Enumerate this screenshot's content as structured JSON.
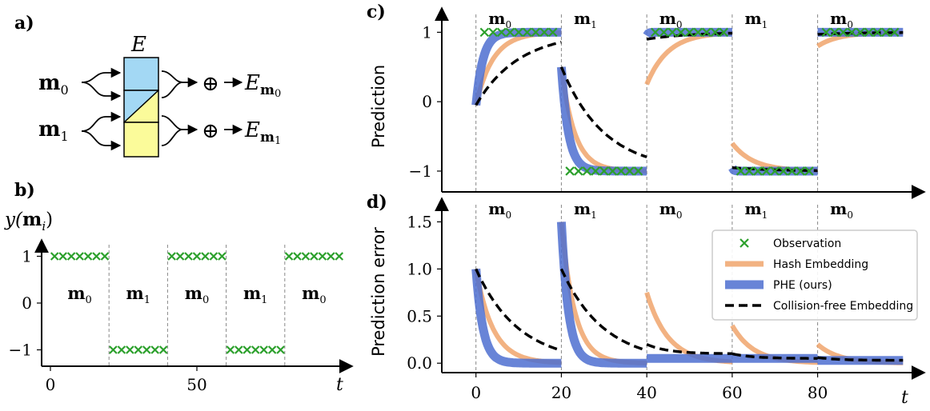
{
  "panel_labels": {
    "a": "a)",
    "b": "b)",
    "c": "c)",
    "d": "d)"
  },
  "diagram": {
    "table_label": "E",
    "inputs": [
      {
        "sym": "m",
        "sub": "0"
      },
      {
        "sym": "m",
        "sub": "1"
      }
    ],
    "plus": "⊕",
    "outputs": [
      {
        "sym": "E",
        "sub_sym": "m",
        "sub": "0"
      },
      {
        "sym": "E",
        "sub_sym": "m",
        "sub": "1"
      }
    ],
    "colors": {
      "blue": "#a3d8f4",
      "yellow": "#fbfb9a",
      "arrow": "#000000"
    }
  },
  "colors": {
    "observation": "#2ca02c",
    "hash": "#f0a46c",
    "phe": "#4e6fd0",
    "cf": "#000000",
    "segment_line": "#888888"
  },
  "chart_data": [
    {
      "id": "b",
      "type": "scatter",
      "ylabel": {
        "sym": "y",
        "arg": "m",
        "sub": "i"
      },
      "xlabel": "t",
      "xlim": [
        -3,
        103
      ],
      "ylim": [
        -1.35,
        1.35
      ],
      "xticks": [
        "0",
        "50"
      ],
      "yticks": [
        "1",
        "0",
        "−1"
      ],
      "segments": [
        {
          "label": "m",
          "sub": "0",
          "start": 0,
          "end": 20,
          "y": 1
        },
        {
          "label": "m",
          "sub": "1",
          "start": 20,
          "end": 40,
          "y": -1
        },
        {
          "label": "m",
          "sub": "0",
          "start": 40,
          "end": 60,
          "y": 1
        },
        {
          "label": "m",
          "sub": "1",
          "start": 60,
          "end": 80,
          "y": -1
        },
        {
          "label": "m",
          "sub": "0",
          "start": 80,
          "end": 100,
          "y": 1
        }
      ],
      "observations_per_segment": 7
    },
    {
      "id": "c",
      "type": "line",
      "ylabel": "Prediction",
      "xlim": [
        -8,
        105
      ],
      "ylim": [
        -1.3,
        1.35
      ],
      "yticks": [
        "1",
        "0",
        "−1"
      ],
      "segment_labels": [
        {
          "label": "m",
          "sub": "0"
        },
        {
          "label": "m",
          "sub": "1"
        },
        {
          "label": "m",
          "sub": "0"
        },
        {
          "label": "m",
          "sub": "1"
        },
        {
          "label": "m",
          "sub": "0"
        }
      ],
      "segment_bounds": [
        0,
        20,
        40,
        60,
        80,
        100
      ],
      "series": [
        {
          "name": "Hash Embedding",
          "role": "hash",
          "segments": [
            [
              0,
              1,
              0.25
            ],
            [
              20,
              -1,
              0.32
            ],
            [
              40,
              0.25,
              0.2
            ],
            [
              60,
              -0.6,
              0.2
            ],
            [
              80,
              0.8,
              0.2
            ]
          ]
        },
        {
          "name": "PHE (ours)",
          "role": "phe",
          "segments": [
            [
              0,
              1,
              0.6
            ],
            [
              20,
              -1,
              0.6
            ],
            [
              40,
              0.95,
              3
            ],
            [
              60,
              -0.95,
              3
            ],
            [
              80,
              1.0,
              3
            ]
          ]
        },
        {
          "name": "Collision-free Embedding",
          "role": "cf",
          "segments": [
            [
              0,
              1,
              0.1
            ],
            [
              20,
              -1,
              0.1
            ],
            [
              40,
              0.9,
              0.1
            ],
            [
              60,
              -0.95,
              0.1
            ],
            [
              80,
              0.97,
              0.1
            ]
          ]
        }
      ]
    },
    {
      "id": "d",
      "type": "line",
      "ylabel": "Prediction error",
      "xlabel": "t",
      "xlim": [
        -8,
        105
      ],
      "ylim": [
        -0.1,
        1.75
      ],
      "xticks": [
        "0",
        "20",
        "40",
        "60",
        "80"
      ],
      "yticks": [
        "1.5",
        "1.0",
        "0.5",
        "0.0"
      ],
      "segment_labels": [
        {
          "label": "m",
          "sub": "0"
        },
        {
          "label": "m",
          "sub": "1"
        },
        {
          "label": "m",
          "sub": "0"
        },
        {
          "label": "m",
          "sub": "1"
        },
        {
          "label": "m",
          "sub": "0"
        }
      ],
      "segment_bounds": [
        0,
        20,
        40,
        60,
        80,
        100
      ],
      "series": [
        {
          "name": "Hash Embedding",
          "role": "hash",
          "segments": [
            [
              0,
              1.0,
              0.25
            ],
            [
              20,
              1.5,
              0.32
            ],
            [
              40,
              0.75,
              0.2
            ],
            [
              60,
              0.4,
              0.2
            ],
            [
              80,
              0.2,
              0.2
            ]
          ]
        },
        {
          "name": "PHE (ours)",
          "role": "phe",
          "segments": [
            [
              0,
              1.0,
              0.6
            ],
            [
              20,
              1.5,
              0.6
            ],
            [
              40,
              0.05,
              3
            ],
            [
              60,
              0.05,
              3
            ],
            [
              80,
              0.03,
              3
            ]
          ]
        },
        {
          "name": "Collision-free Embedding",
          "role": "cf",
          "segments": [
            [
              0,
              1.0,
              0.1
            ],
            [
              20,
              1.0,
              0.1
            ],
            [
              40,
              0.1,
              0.1
            ],
            [
              60,
              0.05,
              0.1
            ],
            [
              80,
              0.03,
              0.1
            ]
          ]
        }
      ]
    }
  ],
  "legend": {
    "placement": "top-right",
    "entries": [
      {
        "label": "Observation",
        "marker": "x",
        "role": "observation"
      },
      {
        "label": "Hash Embedding",
        "marker": "line",
        "role": "hash"
      },
      {
        "label": "PHE (ours)",
        "marker": "line",
        "role": "phe"
      },
      {
        "label": "Collision-free Embedding",
        "marker": "dash",
        "role": "cf"
      }
    ]
  }
}
